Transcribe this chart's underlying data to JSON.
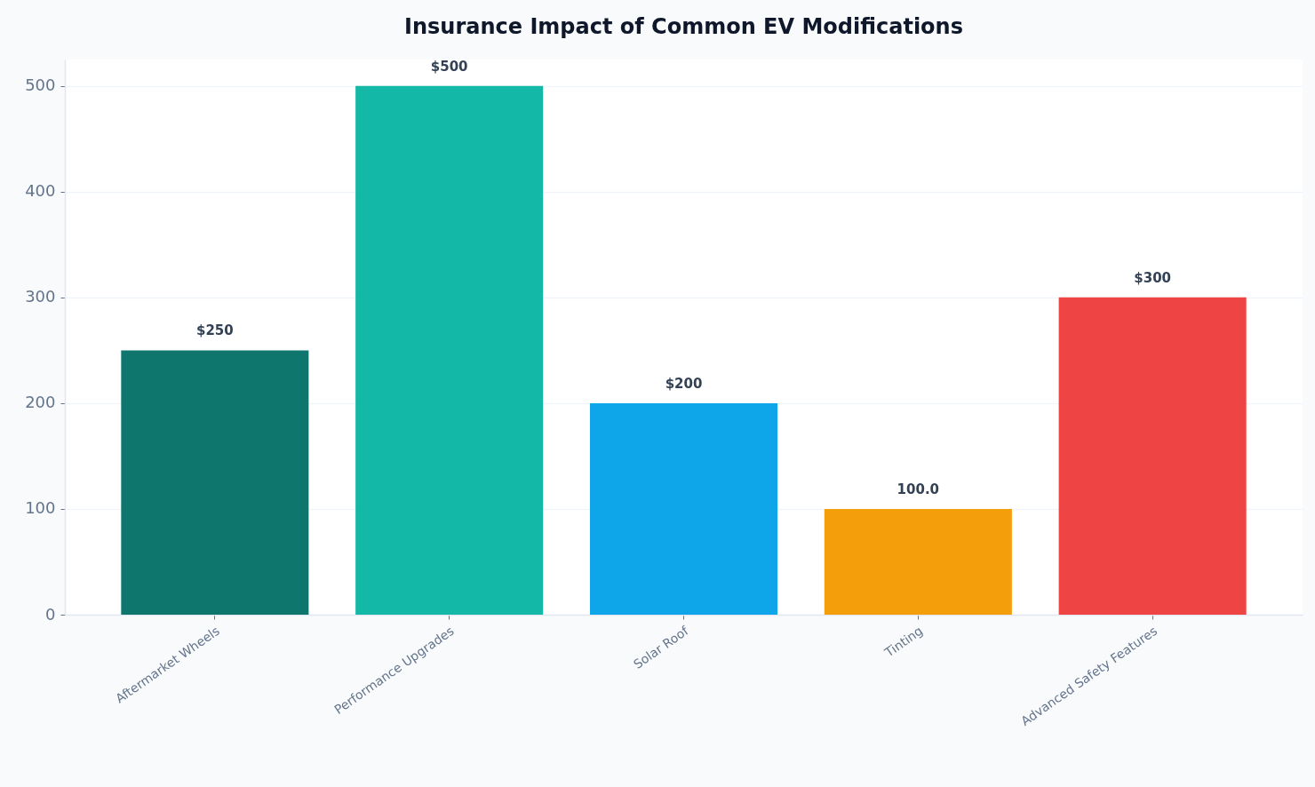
{
  "chart_data": {
    "type": "bar",
    "title": "Insurance Impact of Common EV Modifications",
    "categories": [
      "Aftermarket Wheels",
      "Performance Upgrades",
      "Solar Roof",
      "Tinting",
      "Advanced Safety Features"
    ],
    "values": [
      250,
      500,
      200,
      100,
      300
    ],
    "value_labels": [
      "$250",
      "$500",
      "$200",
      "100.0",
      "$300"
    ],
    "colors": [
      "#0f766e",
      "#14b8a6",
      "#0ea5e9",
      "#f59e0b",
      "#ef4444"
    ],
    "ylim": [
      0,
      525
    ],
    "yticks": [
      0,
      100,
      200,
      300,
      400,
      500
    ],
    "grid": "y"
  }
}
